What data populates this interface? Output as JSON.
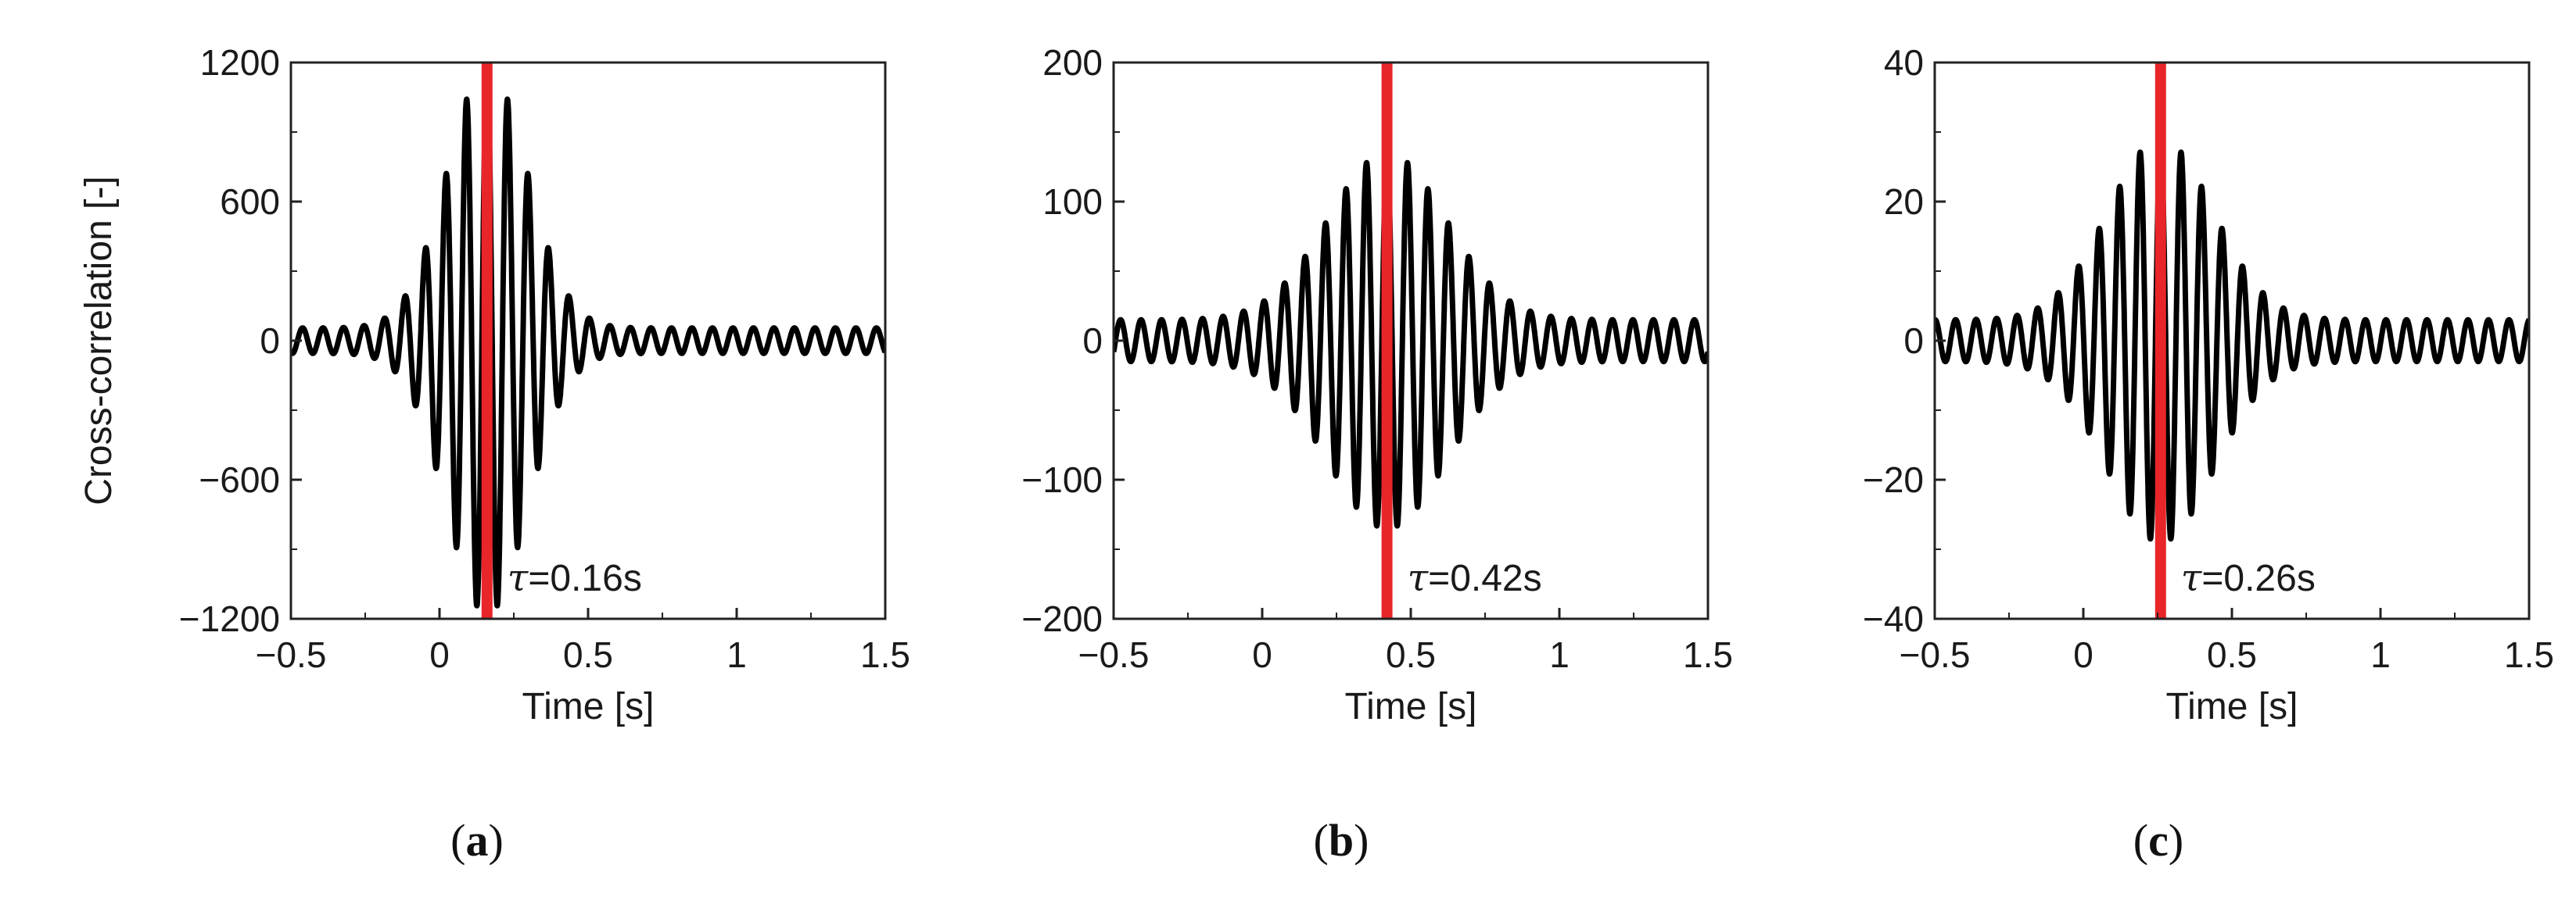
{
  "chart_data": [
    {
      "type": "line",
      "panel": "(a)",
      "panel_prefix": "(",
      "panel_letter": "a",
      "panel_suffix": ")",
      "xlabel": "Time [s]",
      "ylabel": "Cross-correlation [-]",
      "xlim": [
        -0.5,
        1.5
      ],
      "ylim": [
        -1200,
        1200
      ],
      "xticks": [
        -0.5,
        0,
        0.5,
        1,
        1.5
      ],
      "xtick_labels": [
        "−0.5",
        "0",
        "0.5",
        "1",
        "1.5"
      ],
      "yticks": [
        -1200,
        -600,
        0,
        600,
        1200
      ],
      "ytick_labels": [
        "−1200",
        "−600",
        "0",
        "600",
        "1200"
      ],
      "series": [
        {
          "signal": {
            "peak_time": 0.16,
            "peak_amplitude": 1180,
            "frequency_hz": 14.5,
            "envelope_width_s": 0.19,
            "tail_amplitude": 55,
            "color": "#000000"
          }
        }
      ],
      "marker": {
        "x": 0.16,
        "color": "#e8262a"
      },
      "annotation": {
        "symbol": "τ",
        "text": "=0.16s"
      }
    },
    {
      "type": "line",
      "panel": "(b)",
      "panel_prefix": "(",
      "panel_letter": "b",
      "panel_suffix": ")",
      "xlabel": "Time [s]",
      "ylabel": "",
      "xlim": [
        -0.5,
        1.5
      ],
      "ylim": [
        -200,
        200
      ],
      "xticks": [
        -0.5,
        0,
        0.5,
        1,
        1.5
      ],
      "xtick_labels": [
        "−0.5",
        "0",
        "0.5",
        "1",
        "1.5"
      ],
      "yticks": [
        -200,
        -100,
        0,
        100,
        200
      ],
      "ytick_labels": [
        "−200",
        "−100",
        "0",
        "100",
        "200"
      ],
      "series": [
        {
          "signal": {
            "peak_time": 0.42,
            "peak_amplitude": 135,
            "frequency_hz": 14.5,
            "envelope_width_s": 0.28,
            "tail_amplitude": 15,
            "color": "#000000"
          }
        }
      ],
      "marker": {
        "x": 0.42,
        "color": "#e8262a"
      },
      "annotation": {
        "symbol": "τ",
        "text": "=0.42s"
      }
    },
    {
      "type": "line",
      "panel": "(c)",
      "panel_prefix": "(",
      "panel_letter": "c",
      "panel_suffix": ")",
      "xlabel": "Time [s]",
      "ylabel": "",
      "xlim": [
        -0.5,
        1.5
      ],
      "ylim": [
        -40,
        40
      ],
      "xticks": [
        -0.5,
        0,
        0.5,
        1,
        1.5
      ],
      "xtick_labels": [
        "−0.5",
        "0",
        "0.5",
        "1",
        "1.5"
      ],
      "yticks": [
        -40,
        -20,
        0,
        20,
        40
      ],
      "ytick_labels": [
        "−40",
        "−20",
        "0",
        "20",
        "40"
      ],
      "series": [
        {
          "signal": {
            "peak_time": 0.26,
            "peak_amplitude": 29,
            "frequency_hz": 14.5,
            "envelope_width_s": 0.25,
            "tail_amplitude": 3,
            "color": "#000000"
          }
        }
      ],
      "marker": {
        "x": 0.26,
        "color": "#e8262a"
      },
      "annotation": {
        "symbol": "τ",
        "text": "=0.26s"
      }
    }
  ]
}
